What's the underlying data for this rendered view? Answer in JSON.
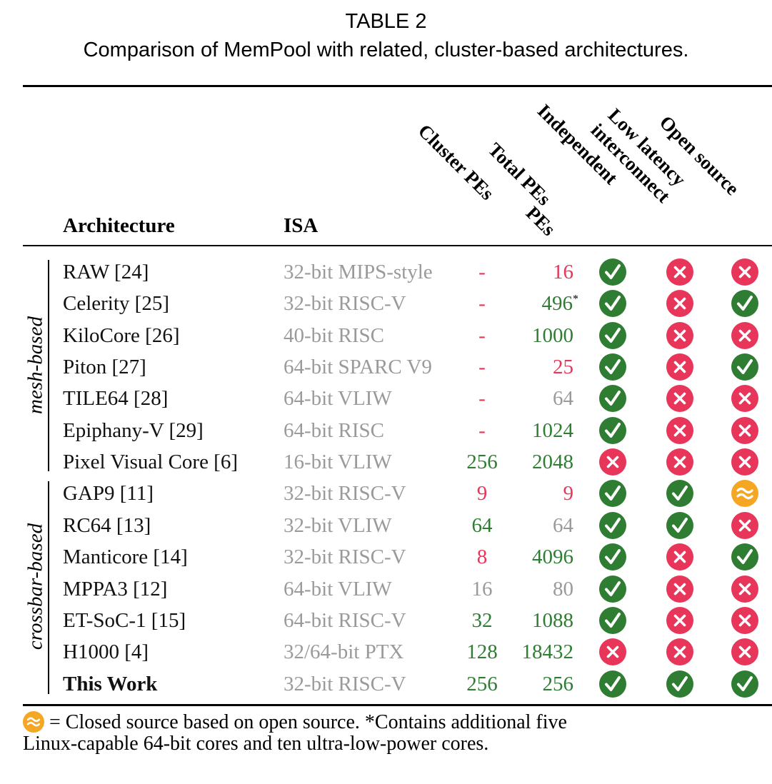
{
  "caption": {
    "label": "TABLE 2",
    "text": "Comparison of MemPool with related, cluster-based architectures."
  },
  "columns": {
    "architecture": "Architecture",
    "isa": "ISA",
    "cluster_pes": "Cluster PEs",
    "total_pes": "Total PEs",
    "independent_1": "Independent",
    "independent_2": "PEs",
    "low_latency_1": "Low latency",
    "low_latency_2": "interconnect",
    "open_source": "Open source"
  },
  "groups": {
    "mesh": "mesh-based",
    "crossbar": "crossbar-based"
  },
  "colors": {
    "red": "#e8355a",
    "green": "#2e7d32",
    "gray": "#9a9a9a",
    "orange": "#f5a623"
  },
  "rows": [
    {
      "arch": "RAW [24]",
      "isa": "32-bit MIPS-style",
      "cluster": "-",
      "cluster_color": "red",
      "total": "16",
      "total_note": "",
      "total_color": "red",
      "indep": "check-icon",
      "lowlat": "cross-icon",
      "open": "cross-icon"
    },
    {
      "arch": "Celerity [25]",
      "isa": "32-bit RISC-V",
      "cluster": "-",
      "cluster_color": "red",
      "total": "496",
      "total_note": "*",
      "total_color": "green",
      "indep": "check-icon",
      "lowlat": "cross-icon",
      "open": "check-icon"
    },
    {
      "arch": "KiloCore [26]",
      "isa": "40-bit RISC",
      "cluster": "-",
      "cluster_color": "red",
      "total": "1000",
      "total_note": "",
      "total_color": "green",
      "indep": "check-icon",
      "lowlat": "cross-icon",
      "open": "cross-icon"
    },
    {
      "arch": "Piton [27]",
      "isa": "64-bit SPARC V9",
      "cluster": "-",
      "cluster_color": "red",
      "total": "25",
      "total_note": "",
      "total_color": "red",
      "indep": "check-icon",
      "lowlat": "cross-icon",
      "open": "check-icon"
    },
    {
      "arch": "TILE64 [28]",
      "isa": "64-bit VLIW",
      "cluster": "-",
      "cluster_color": "red",
      "total": "64",
      "total_note": "",
      "total_color": "gray",
      "indep": "check-icon",
      "lowlat": "cross-icon",
      "open": "cross-icon"
    },
    {
      "arch": "Epiphany-V [29]",
      "isa": "64-bit RISC",
      "cluster": "-",
      "cluster_color": "red",
      "total": "1024",
      "total_note": "",
      "total_color": "green",
      "indep": "check-icon",
      "lowlat": "cross-icon",
      "open": "cross-icon"
    },
    {
      "arch": "Pixel Visual Core [6]",
      "isa": "16-bit VLIW",
      "cluster": "256",
      "cluster_color": "green",
      "total": "2048",
      "total_note": "",
      "total_color": "green",
      "indep": "cross-icon",
      "lowlat": "cross-icon",
      "open": "cross-icon"
    },
    {
      "arch": "GAP9 [11]",
      "isa": "32-bit RISC-V",
      "cluster": "9",
      "cluster_color": "red",
      "total": "9",
      "total_note": "",
      "total_color": "red",
      "indep": "check-icon",
      "lowlat": "check-icon",
      "open": "approx-icon"
    },
    {
      "arch": "RC64 [13]",
      "isa": "32-bit VLIW",
      "cluster": "64",
      "cluster_color": "green",
      "total": "64",
      "total_note": "",
      "total_color": "gray",
      "indep": "check-icon",
      "lowlat": "check-icon",
      "open": "cross-icon"
    },
    {
      "arch": "Manticore [14]",
      "isa": "32-bit RISC-V",
      "cluster": "8",
      "cluster_color": "red",
      "total": "4096",
      "total_note": "",
      "total_color": "green",
      "indep": "check-icon",
      "lowlat": "cross-icon",
      "open": "check-icon"
    },
    {
      "arch": "MPPA3 [12]",
      "isa": "64-bit VLIW",
      "cluster": "16",
      "cluster_color": "gray",
      "total": "80",
      "total_note": "",
      "total_color": "gray",
      "indep": "check-icon",
      "lowlat": "cross-icon",
      "open": "cross-icon"
    },
    {
      "arch": "ET-SoC-1 [15]",
      "isa": "64-bit RISC-V",
      "cluster": "32",
      "cluster_color": "green",
      "total": "1088",
      "total_note": "",
      "total_color": "green",
      "indep": "check-icon",
      "lowlat": "cross-icon",
      "open": "cross-icon"
    },
    {
      "arch": "H1000 [4]",
      "isa": "32/64-bit PTX",
      "cluster": "128",
      "cluster_color": "green",
      "total": "18432",
      "total_note": "",
      "total_color": "green",
      "indep": "cross-icon",
      "lowlat": "cross-icon",
      "open": "cross-icon"
    },
    {
      "arch": "This Work",
      "isa": "32-bit RISC-V",
      "cluster": "256",
      "cluster_color": "green",
      "total": "256",
      "total_note": "",
      "total_color": "green",
      "indep": "check-icon",
      "lowlat": "check-icon",
      "open": "check-icon",
      "bold": true
    }
  ],
  "footnote": {
    "line1": "= Closed source based on open source. *Contains additional five",
    "line2": "Linux-capable 64-bit cores and ten ultra-low-power cores."
  }
}
